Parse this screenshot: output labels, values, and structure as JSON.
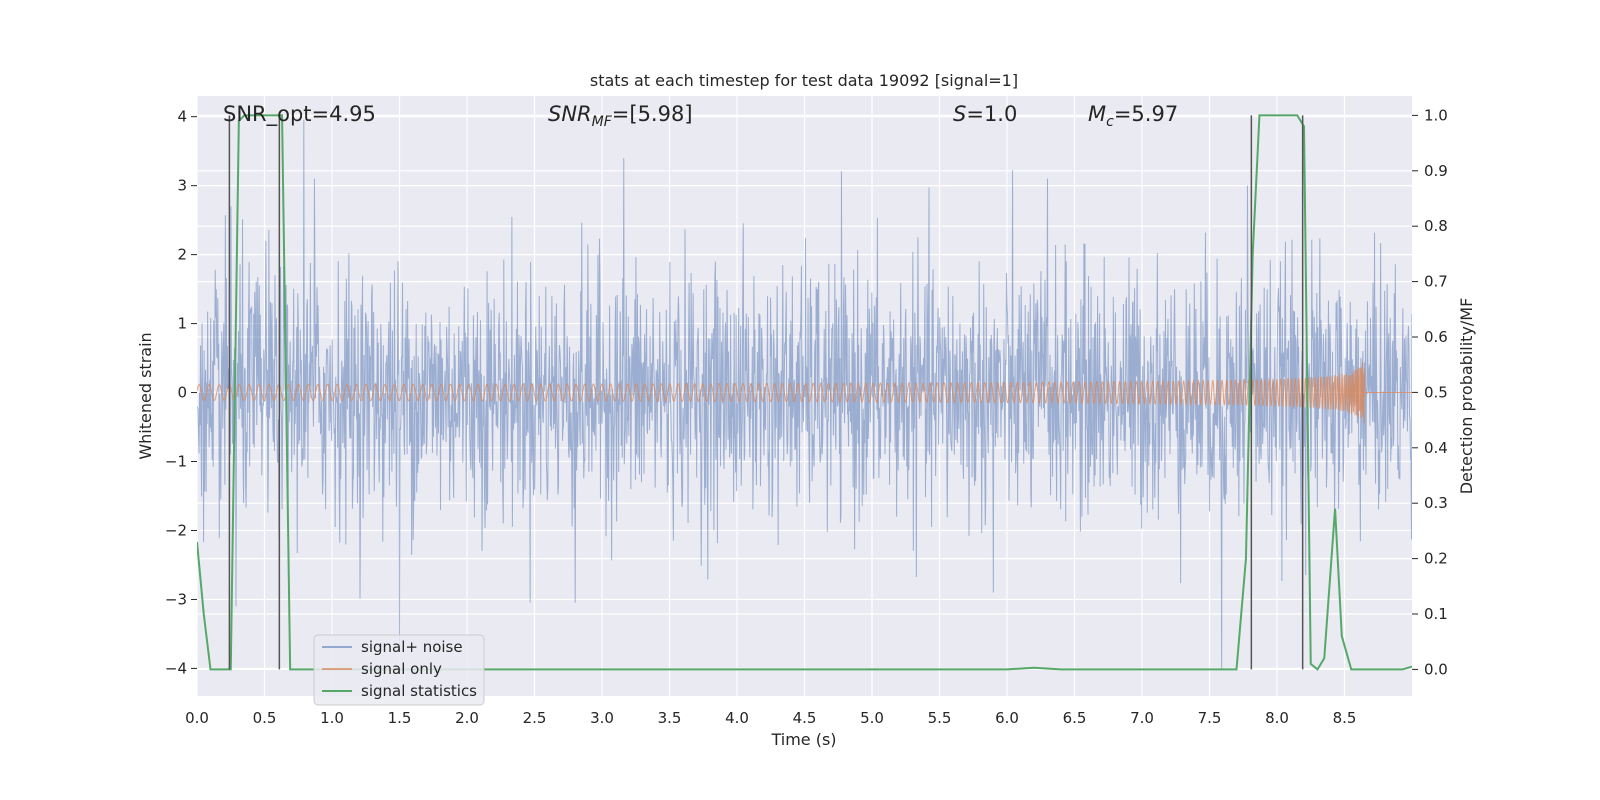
{
  "chart_data": {
    "type": "line",
    "title": "stats at each timestep for test data 19092 [signal=1]",
    "xlabel": "Time (s)",
    "ylabel_left": "Whitened strain",
    "ylabel_right": "Detection probability/MF",
    "xlim": [
      0.0,
      9.0
    ],
    "ylim_left": [
      -4.4,
      4.3
    ],
    "ylim_right": [
      -0.048,
      1.035
    ],
    "grid": true,
    "background": "#eaeaf2",
    "x_ticks": [
      "0.0",
      "0.5",
      "1.0",
      "1.5",
      "2.0",
      "2.5",
      "3.0",
      "3.5",
      "4.0",
      "4.5",
      "5.0",
      "5.5",
      "6.0",
      "6.5",
      "7.0",
      "7.5",
      "8.0",
      "8.5"
    ],
    "y_ticks_left": [
      "−4",
      "−3",
      "−2",
      "−1",
      "0",
      "1",
      "2",
      "3",
      "4"
    ],
    "y_ticks_right": [
      "0.0",
      "0.1",
      "0.2",
      "0.3",
      "0.4",
      "0.5",
      "0.6",
      "0.7",
      "0.8",
      "0.9",
      "1.0"
    ],
    "annotations": {
      "snr_opt": "SNR_opt=4.95",
      "snr_mf_prefix": "SNR",
      "snr_mf_sub": "MF",
      "snr_mf_suffix": "=[5.98]",
      "s_prefix": "S",
      "s_suffix": "=1.0",
      "mc_prefix": "M",
      "mc_sub": "c",
      "mc_suffix": "=5.97"
    },
    "legend": {
      "position": "lower-left",
      "entries": [
        "signal+ noise",
        "signal only",
        "signal statistics"
      ]
    },
    "series": [
      {
        "name": "signal+ noise",
        "color": "#4c72b0",
        "axis": "left",
        "style": "noise",
        "sigma": 0.9,
        "peaks": [
          {
            "x": 0.25,
            "y": 2.7
          },
          {
            "x": 0.29,
            "y": -3.1
          },
          {
            "x": 0.51,
            "y": 2.2
          },
          {
            "x": 0.79,
            "y": 3.95
          },
          {
            "x": 0.87,
            "y": 3.1
          },
          {
            "x": 1.5,
            "y": -3.7
          },
          {
            "x": 2.8,
            "y": -3.05
          },
          {
            "x": 3.16,
            "y": 3.4
          },
          {
            "x": 5.9,
            "y": -2.9
          },
          {
            "x": 6.3,
            "y": 3.1
          },
          {
            "x": 7.59,
            "y": -4.0
          },
          {
            "x": 7.78,
            "y": 3.0
          }
        ]
      },
      {
        "name": "signal only",
        "color": "#dd8452",
        "axis": "left",
        "style": "chirp",
        "end_time": 8.65,
        "end_amplitude": 0.45
      },
      {
        "name": "signal statistics",
        "color": "#55a868",
        "axis": "right",
        "x": [
          0.0,
          0.05,
          0.1,
          0.25,
          0.31,
          0.35,
          0.45,
          0.6,
          0.63,
          0.69,
          0.75,
          1.0,
          6.0,
          6.2,
          6.4,
          7.7,
          7.77,
          7.82,
          7.87,
          7.95,
          8.0,
          8.15,
          8.2,
          8.25,
          8.3,
          8.35,
          8.43,
          8.48,
          8.55,
          8.6,
          8.8,
          8.93,
          9.0
        ],
        "y": [
          0.23,
          0.1,
          0.0,
          0.0,
          0.99,
          1.0,
          1.0,
          1.0,
          1.0,
          0.0,
          0.0,
          0.0,
          0.0,
          0.003,
          0.0,
          0.0,
          0.2,
          0.75,
          1.0,
          1.0,
          1.0,
          1.0,
          0.98,
          0.01,
          0.0,
          0.02,
          0.29,
          0.06,
          0.0,
          0.0,
          0.0,
          0.0,
          0.005
        ]
      }
    ],
    "markers": {
      "color": "#555555",
      "x": [
        0.24,
        0.61,
        7.81,
        8.19
      ]
    }
  }
}
